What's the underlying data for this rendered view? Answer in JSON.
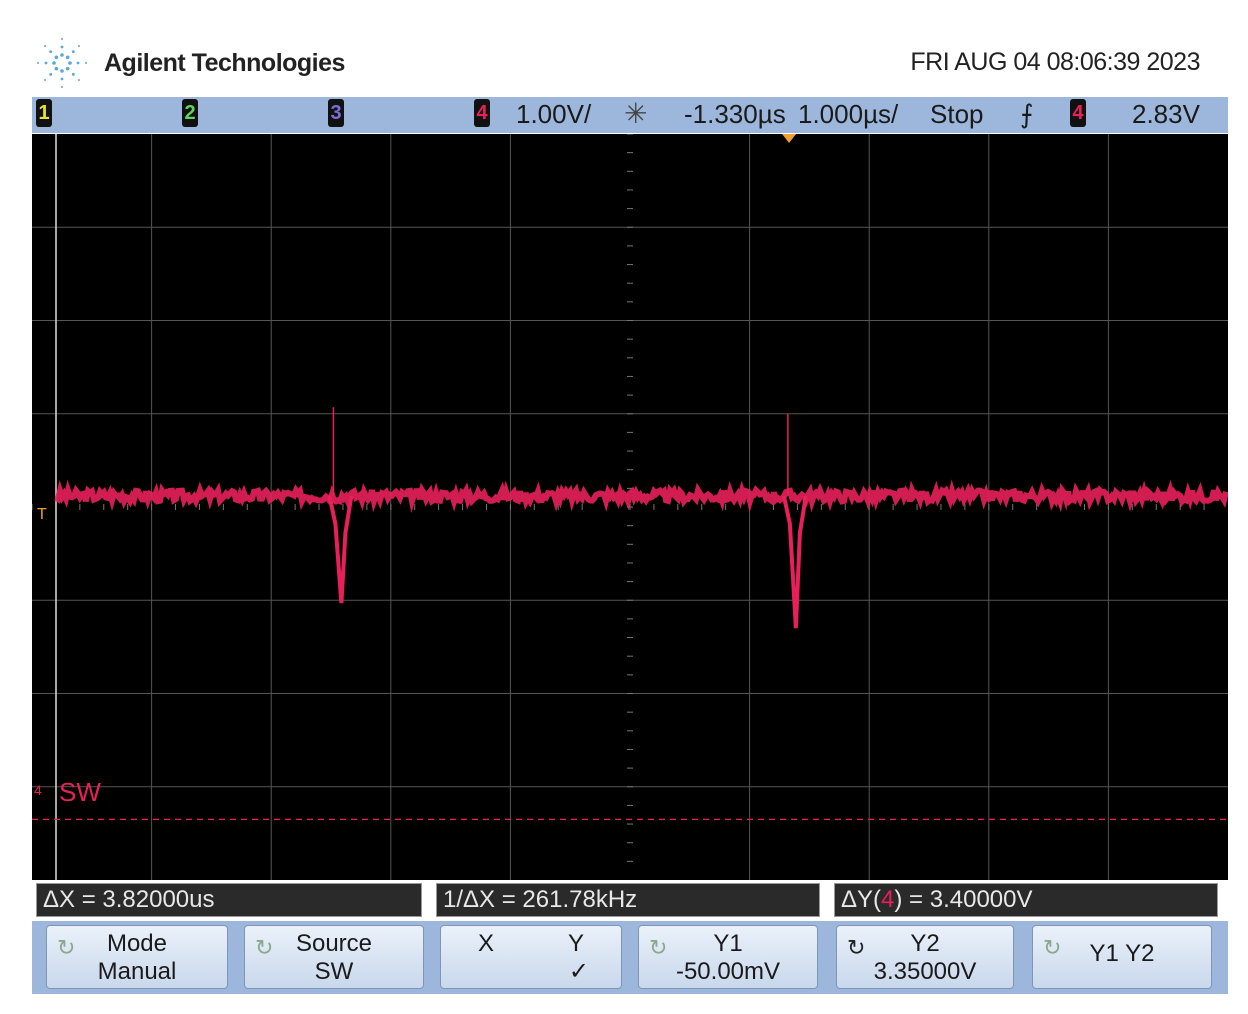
{
  "header": {
    "brand": "Agilent Technologies",
    "datetime": "FRI AUG 04 08:06:39 2023"
  },
  "topbar": {
    "channels": [
      "1",
      "2",
      "3",
      "4"
    ],
    "channel_colors": [
      "#e8e03a",
      "#5fd35f",
      "#7a6fd8",
      "#e8205a"
    ],
    "ch4_scale": "1.00V/",
    "delay": "-1.330µs",
    "timebase": "1.000µs/",
    "run_state": "Stop",
    "trigger_slope": "rising-edge",
    "trigger_channel": "4",
    "trigger_level": "2.83V"
  },
  "screen": {
    "ground_label": "SW",
    "trigger_marker": "T",
    "ground_marker": "4"
  },
  "measurements": {
    "dx": "ΔX = 3.82000us",
    "inv_dx": "1/ΔX = 261.78kHz",
    "dy_prefix": "ΔY(",
    "dy_channel": "4",
    "dy_suffix": ") = 3.40000V"
  },
  "softkeys": [
    {
      "top": "Mode",
      "bottom": "Manual"
    },
    {
      "top": "Source",
      "bottom": "SW"
    },
    {
      "top": "X",
      "top2": "Y",
      "bottom": "✓"
    },
    {
      "top": "Y1",
      "bottom": "-50.00mV"
    },
    {
      "top": "Y2",
      "bottom": "3.35000V"
    },
    {
      "top": "Y1 Y2",
      "bottom": ""
    }
  ],
  "chart_data": {
    "type": "line",
    "x_unit": "µs",
    "y_unit": "V",
    "xlim": [
      -6.33,
      3.67
    ],
    "ylim": [
      -0.7,
      7.3
    ],
    "grid": true,
    "series": [
      {
        "channel": "4",
        "color": "#e8205a",
        "baseline_v": 3.42,
        "events": [
          {
            "t": -3.81,
            "min_v": 2.27,
            "max_v": 4.37
          },
          {
            "t": -0.01,
            "min_v": 2.0,
            "max_v": 4.3
          }
        ]
      }
    ],
    "cursors": {
      "y1_v": -0.05,
      "y2_v": 3.35
    }
  }
}
